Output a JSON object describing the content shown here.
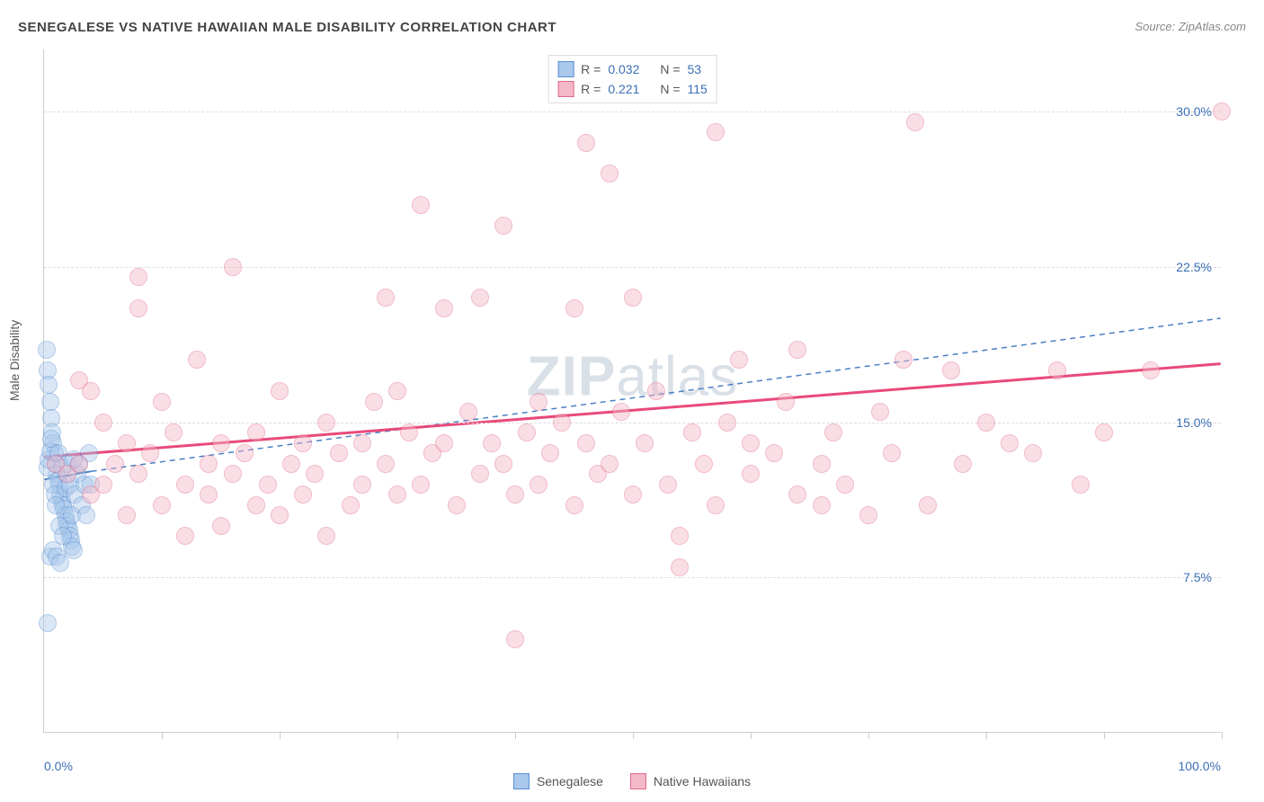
{
  "title": "SENEGALESE VS NATIVE HAWAIIAN MALE DISABILITY CORRELATION CHART",
  "source": "Source: ZipAtlas.com",
  "watermark_bold": "ZIP",
  "watermark_light": "atlas",
  "chart": {
    "type": "scatter",
    "background_color": "#ffffff",
    "grid_color": "#dddddd",
    "axis_color": "#cccccc",
    "tick_label_color": "#3b6fb6",
    "xlim": [
      0,
      100
    ],
    "ylim": [
      0,
      33
    ],
    "yticks": [
      {
        "v": 7.5,
        "label": "7.5%"
      },
      {
        "v": 15.0,
        "label": "15.0%"
      },
      {
        "v": 22.5,
        "label": "22.5%"
      },
      {
        "v": 30.0,
        "label": "30.0%"
      }
    ],
    "xticks_minor": [
      10,
      20,
      30,
      40,
      50,
      60,
      70,
      80,
      90,
      100
    ],
    "xlabels": [
      {
        "v": 0,
        "label": "0.0%",
        "align": "left"
      },
      {
        "v": 100,
        "label": "100.0%",
        "align": "right"
      }
    ],
    "ylabel": "Male Disability",
    "marker_radius": 10,
    "marker_opacity": 0.45,
    "series": [
      {
        "name": "Senegalese",
        "color_fill": "#a9c8ec",
        "color_stroke": "#5a8fd0",
        "r": "0.032",
        "n": "53",
        "trend": {
          "x1": 0,
          "y1": 12.2,
          "x2": 4,
          "y2": 12.6,
          "dashed_ext": {
            "x2": 100,
            "y2": 20.0
          },
          "color": "#4a7fc4",
          "width": 2
        },
        "points": [
          [
            0.2,
            18.5
          ],
          [
            0.3,
            17.5
          ],
          [
            0.4,
            16.8
          ],
          [
            0.5,
            16.0
          ],
          [
            0.6,
            15.2
          ],
          [
            0.7,
            14.5
          ],
          [
            0.8,
            14.0
          ],
          [
            0.9,
            13.5
          ],
          [
            1.0,
            13.0
          ],
          [
            1.1,
            12.5
          ],
          [
            1.2,
            12.2
          ],
          [
            1.3,
            12.0
          ],
          [
            1.4,
            11.5
          ],
          [
            1.5,
            11.2
          ],
          [
            1.6,
            11.0
          ],
          [
            1.7,
            10.8
          ],
          [
            1.8,
            10.5
          ],
          [
            1.9,
            10.2
          ],
          [
            2.0,
            10.0
          ],
          [
            2.1,
            9.8
          ],
          [
            2.2,
            9.5
          ],
          [
            2.3,
            9.3
          ],
          [
            2.4,
            9.0
          ],
          [
            2.5,
            8.8
          ],
          [
            0.3,
            12.8
          ],
          [
            0.4,
            13.2
          ],
          [
            0.5,
            13.6
          ],
          [
            0.6,
            14.2
          ],
          [
            0.8,
            12.0
          ],
          [
            0.9,
            11.5
          ],
          [
            1.0,
            11.0
          ],
          [
            1.2,
            13.5
          ],
          [
            1.3,
            10.0
          ],
          [
            1.5,
            12.8
          ],
          [
            1.6,
            9.5
          ],
          [
            1.8,
            11.8
          ],
          [
            2.0,
            13.0
          ],
          [
            2.2,
            12.0
          ],
          [
            2.4,
            10.5
          ],
          [
            2.6,
            11.5
          ],
          [
            2.8,
            12.5
          ],
          [
            3.0,
            13.0
          ],
          [
            3.2,
            11.0
          ],
          [
            3.4,
            12.0
          ],
          [
            3.6,
            10.5
          ],
          [
            3.8,
            13.5
          ],
          [
            4.0,
            12.0
          ],
          [
            0.5,
            8.5
          ],
          [
            0.8,
            8.8
          ],
          [
            1.1,
            8.5
          ],
          [
            1.4,
            8.2
          ],
          [
            0.3,
            5.3
          ],
          [
            2.5,
            13.2
          ]
        ]
      },
      {
        "name": "Native Hawaiians",
        "color_fill": "#f5b8c8",
        "color_stroke": "#e06a8a",
        "r": "0.221",
        "n": "115",
        "trend": {
          "x1": 0,
          "y1": 13.3,
          "x2": 100,
          "y2": 17.8,
          "color": "#e84a7a",
          "width": 3
        },
        "points": [
          [
            1,
            13.0
          ],
          [
            2,
            12.5
          ],
          [
            3,
            17.0
          ],
          [
            3,
            13.0
          ],
          [
            4,
            16.5
          ],
          [
            4,
            11.5
          ],
          [
            5,
            15.0
          ],
          [
            5,
            12.0
          ],
          [
            6,
            13.0
          ],
          [
            7,
            14.0
          ],
          [
            7,
            10.5
          ],
          [
            8,
            20.5
          ],
          [
            8,
            22.0
          ],
          [
            8,
            12.5
          ],
          [
            9,
            13.5
          ],
          [
            10,
            11.0
          ],
          [
            10,
            16.0
          ],
          [
            11,
            14.5
          ],
          [
            12,
            12.0
          ],
          [
            12,
            9.5
          ],
          [
            13,
            18.0
          ],
          [
            14,
            13.0
          ],
          [
            14,
            11.5
          ],
          [
            15,
            14.0
          ],
          [
            15,
            10.0
          ],
          [
            16,
            22.5
          ],
          [
            16,
            12.5
          ],
          [
            17,
            13.5
          ],
          [
            18,
            11.0
          ],
          [
            18,
            14.5
          ],
          [
            19,
            12.0
          ],
          [
            20,
            16.5
          ],
          [
            20,
            10.5
          ],
          [
            21,
            13.0
          ],
          [
            22,
            14.0
          ],
          [
            22,
            11.5
          ],
          [
            23,
            12.5
          ],
          [
            24,
            15.0
          ],
          [
            24,
            9.5
          ],
          [
            25,
            13.5
          ],
          [
            26,
            11.0
          ],
          [
            27,
            14.0
          ],
          [
            27,
            12.0
          ],
          [
            28,
            16.0
          ],
          [
            29,
            13.0
          ],
          [
            29,
            21.0
          ],
          [
            30,
            16.5
          ],
          [
            30,
            11.5
          ],
          [
            31,
            14.5
          ],
          [
            32,
            25.5
          ],
          [
            32,
            12.0
          ],
          [
            33,
            13.5
          ],
          [
            34,
            20.5
          ],
          [
            34,
            14.0
          ],
          [
            35,
            11.0
          ],
          [
            36,
            15.5
          ],
          [
            37,
            12.5
          ],
          [
            37,
            21.0
          ],
          [
            38,
            14.0
          ],
          [
            39,
            24.5
          ],
          [
            39,
            13.0
          ],
          [
            40,
            11.5
          ],
          [
            40,
            4.5
          ],
          [
            41,
            14.5
          ],
          [
            42,
            16.0
          ],
          [
            42,
            12.0
          ],
          [
            43,
            13.5
          ],
          [
            44,
            15.0
          ],
          [
            45,
            20.5
          ],
          [
            45,
            11.0
          ],
          [
            46,
            28.5
          ],
          [
            46,
            14.0
          ],
          [
            47,
            12.5
          ],
          [
            48,
            27.0
          ],
          [
            48,
            13.0
          ],
          [
            49,
            15.5
          ],
          [
            50,
            21.0
          ],
          [
            50,
            11.5
          ],
          [
            51,
            14.0
          ],
          [
            52,
            16.5
          ],
          [
            53,
            12.0
          ],
          [
            54,
            9.5
          ],
          [
            54,
            8.0
          ],
          [
            55,
            14.5
          ],
          [
            56,
            13.0
          ],
          [
            57,
            29.0
          ],
          [
            57,
            11.0
          ],
          [
            58,
            15.0
          ],
          [
            59,
            18.0
          ],
          [
            60,
            12.5
          ],
          [
            60,
            14.0
          ],
          [
            62,
            13.5
          ],
          [
            63,
            16.0
          ],
          [
            64,
            18.5
          ],
          [
            64,
            11.5
          ],
          [
            66,
            11.0
          ],
          [
            66,
            13.0
          ],
          [
            67,
            14.5
          ],
          [
            68,
            12.0
          ],
          [
            70,
            10.5
          ],
          [
            71,
            15.5
          ],
          [
            72,
            13.5
          ],
          [
            73,
            18.0
          ],
          [
            74,
            29.5
          ],
          [
            75,
            11.0
          ],
          [
            77,
            17.5
          ],
          [
            78,
            13.0
          ],
          [
            80,
            15.0
          ],
          [
            82,
            14.0
          ],
          [
            84,
            13.5
          ],
          [
            86,
            17.5
          ],
          [
            88,
            12.0
          ],
          [
            90,
            14.5
          ],
          [
            94,
            17.5
          ],
          [
            100,
            30.0
          ]
        ]
      }
    ]
  },
  "legend_bottom": [
    {
      "label": "Senegalese",
      "fill": "#a9c8ec",
      "stroke": "#5a8fd0"
    },
    {
      "label": "Native Hawaiians",
      "fill": "#f5b8c8",
      "stroke": "#e06a8a"
    }
  ]
}
